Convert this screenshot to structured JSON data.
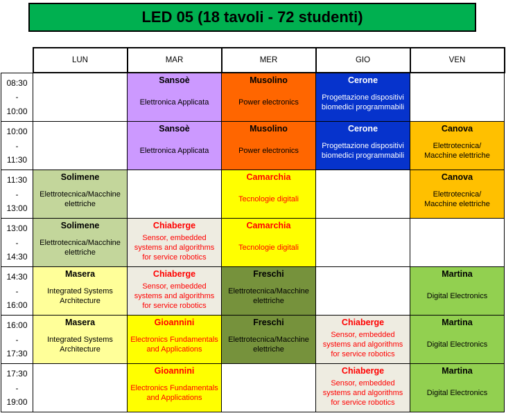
{
  "title": {
    "text": "LED 05 (18 tavoli - 72 studenti)",
    "bg": "#00B050"
  },
  "days": [
    "LUN",
    "MAR",
    "MER",
    "GIO",
    "VEN"
  ],
  "colors": {
    "title_green": "#00B050",
    "purple": "#CC99FF",
    "orange": "#FF6600",
    "blue": "#0633CC",
    "gold": "#FFC000",
    "light_green": "#C3D69B",
    "yellow": "#FFFF00",
    "beige": "#EEECE1",
    "pale_yellow": "#FFFF99",
    "dark_olive": "#76923C",
    "lime_green": "#92D050",
    "red_text": "#FF0000"
  },
  "rows": [
    {
      "time": {
        "start": "08:30",
        "sep": "-",
        "end": "10:00"
      },
      "cells": [
        {
          "teacher": "",
          "course": "",
          "bg": "#FFFFFF",
          "fg": "#000000"
        },
        {
          "teacher": "Sansoè",
          "course": "Elettronica Applicata",
          "bg": "#CC99FF",
          "fg": "#000000"
        },
        {
          "teacher": "Musolino",
          "course": "Power electronics",
          "bg": "#FF6600",
          "fg": "#000000"
        },
        {
          "teacher": "Cerone",
          "course": "Progettazione dispositivi biomedici programmabili",
          "bg": "#0633CC",
          "fg": "#FFFFFF"
        },
        {
          "teacher": "",
          "course": "",
          "bg": "#FFFFFF",
          "fg": "#000000"
        }
      ]
    },
    {
      "time": {
        "start": "10:00",
        "sep": "-",
        "end": "11:30"
      },
      "cells": [
        {
          "teacher": "",
          "course": "",
          "bg": "#FFFFFF",
          "fg": "#000000"
        },
        {
          "teacher": "Sansoè",
          "course": "Elettronica Applicata",
          "bg": "#CC99FF",
          "fg": "#000000"
        },
        {
          "teacher": "Musolino",
          "course": "Power electronics",
          "bg": "#FF6600",
          "fg": "#000000"
        },
        {
          "teacher": "Cerone",
          "course": "Progettazione dispositivi biomedici programmabili",
          "bg": "#0633CC",
          "fg": "#FFFFFF"
        },
        {
          "teacher": "Canova",
          "course": "Elettrotecnica/\nMacchine elettriche",
          "bg": "#FFC000",
          "fg": "#000000"
        }
      ]
    },
    {
      "time": {
        "start": "11:30",
        "sep": "-",
        "end": "13:00"
      },
      "cells": [
        {
          "teacher": "Solimene",
          "course": "Elettrotecnica/Macchine elettriche",
          "bg": "#C3D69B",
          "fg": "#000000"
        },
        {
          "teacher": "",
          "course": "",
          "bg": "#FFFFFF",
          "fg": "#000000"
        },
        {
          "teacher": "Camarchia",
          "course": "Tecnologie digitali",
          "bg": "#FFFF00",
          "fg": "#FF0000"
        },
        {
          "teacher": "",
          "course": "",
          "bg": "#FFFFFF",
          "fg": "#000000"
        },
        {
          "teacher": "Canova",
          "course": "Elettrotecnica/\nMacchine elettriche",
          "bg": "#FFC000",
          "fg": "#000000"
        }
      ]
    },
    {
      "time": {
        "start": "13:00",
        "sep": "-",
        "end": "14:30"
      },
      "cells": [
        {
          "teacher": "Solimene",
          "course": "Elettrotecnica/Macchine elettriche",
          "bg": "#C3D69B",
          "fg": "#000000"
        },
        {
          "teacher": "Chiaberge",
          "course": "Sensor, embedded systems and algorithms for service robotics",
          "bg": "#EEECE1",
          "fg": "#FF0000"
        },
        {
          "teacher": "Camarchia",
          "course": "Tecnologie digitali",
          "bg": "#FFFF00",
          "fg": "#FF0000"
        },
        {
          "teacher": "",
          "course": "",
          "bg": "#FFFFFF",
          "fg": "#000000"
        },
        {
          "teacher": "",
          "course": "",
          "bg": "#FFFFFF",
          "fg": "#000000"
        }
      ]
    },
    {
      "time": {
        "start": "14:30",
        "sep": "-",
        "end": "16:00"
      },
      "cells": [
        {
          "teacher": "Masera",
          "course": "Integrated Systems Architecture",
          "bg": "#FFFF99",
          "fg": "#000000"
        },
        {
          "teacher": "Chiaberge",
          "course": "Sensor, embedded systems and algorithms for service robotics",
          "bg": "#EEECE1",
          "fg": "#FF0000"
        },
        {
          "teacher": "Freschi",
          "course": "Elettrotecnica/Macchine elettriche",
          "bg": "#76923C",
          "fg": "#000000"
        },
        {
          "teacher": "",
          "course": "",
          "bg": "#FFFFFF",
          "fg": "#000000"
        },
        {
          "teacher": "Martina",
          "course": "Digital Electronics",
          "bg": "#92D050",
          "fg": "#000000"
        }
      ]
    },
    {
      "time": {
        "start": "16:00",
        "sep": "-",
        "end": "17:30"
      },
      "cells": [
        {
          "teacher": "Masera",
          "course": "Integrated Systems Architecture",
          "bg": "#FFFF99",
          "fg": "#000000"
        },
        {
          "teacher": "Gioannini",
          "course": "Electronics Fundamentals and Applications",
          "bg": "#FFFF00",
          "fg": "#FF0000"
        },
        {
          "teacher": "Freschi",
          "course": "Elettrotecnica/Macchine elettriche",
          "bg": "#76923C",
          "fg": "#000000"
        },
        {
          "teacher": "Chiaberge",
          "course": "Sensor, embedded systems and algorithms for service robotics",
          "bg": "#EEECE1",
          "fg": "#FF0000"
        },
        {
          "teacher": "Martina",
          "course": "Digital Electronics",
          "bg": "#92D050",
          "fg": "#000000"
        }
      ]
    },
    {
      "time": {
        "start": "17:30",
        "sep": "-",
        "end": "19:00"
      },
      "cells": [
        {
          "teacher": "",
          "course": "",
          "bg": "#FFFFFF",
          "fg": "#000000"
        },
        {
          "teacher": "Gioannini",
          "course": "Electronics Fundamentals and Applications",
          "bg": "#FFFF00",
          "fg": "#FF0000"
        },
        {
          "teacher": "",
          "course": "",
          "bg": "#FFFFFF",
          "fg": "#000000"
        },
        {
          "teacher": "Chiaberge",
          "course": "Sensor, embedded systems and algorithms for service robotics",
          "bg": "#EEECE1",
          "fg": "#FF0000"
        },
        {
          "teacher": "Martina",
          "course": "Digital Electronics",
          "bg": "#92D050",
          "fg": "#000000"
        }
      ]
    }
  ]
}
